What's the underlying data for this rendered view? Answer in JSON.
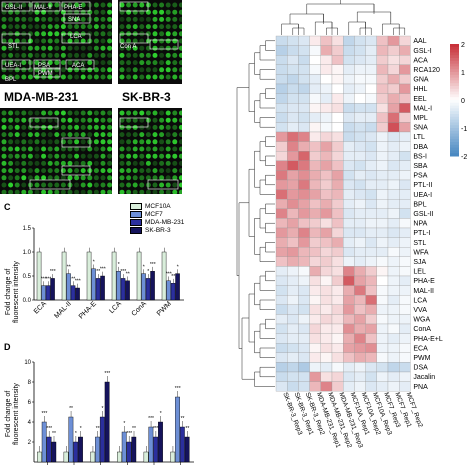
{
  "arrays": {
    "top_left_labels": [
      "GSL-II",
      "MAL-II",
      "PHA-E",
      "STL",
      "UEA-I",
      "BPL",
      "PSA",
      "PWM",
      "LCA",
      "ACA",
      "SNA",
      "Con A"
    ],
    "captions": [
      "MDA-MB-231",
      "SK-BR-3"
    ],
    "colors": {
      "background": "#0a0a0a",
      "spot": "#2fd12f"
    }
  },
  "panel_c": {
    "letter": "C",
    "ylabel_line1": "Fold change of",
    "ylabel_line2": "fluorescent intensity",
    "categories": [
      "ECA",
      "MAL-II",
      "PHA-E",
      "LCA",
      "ConA",
      "PWM"
    ],
    "legend": [
      "MCF10A",
      "MCF7",
      "MDA-MB-231",
      "SK-BR-3"
    ],
    "colors": [
      "#d9eedb",
      "#6d8fd6",
      "#2b2f9e",
      "#15135c"
    ]
  },
  "panel_d": {
    "letter": "D",
    "ylabel_line1": "Fold change of",
    "ylabel_line2": "fluorescent intensity"
  },
  "chart_data": [
    {
      "type": "bar",
      "title": "",
      "xlabel": "",
      "ylabel": "Fold change of fluorescent intensity",
      "ylim": [
        0,
        1.5
      ],
      "yticks": [
        0.0,
        0.5,
        1.0,
        1.5
      ],
      "categories": [
        "ECA",
        "MAL-II",
        "PHA-E",
        "LCA",
        "ConA",
        "PWM"
      ],
      "series": [
        {
          "name": "MCF10A",
          "values": [
            1.0,
            1.0,
            1.0,
            1.0,
            1.0,
            1.0
          ]
        },
        {
          "name": "MCF7",
          "values": [
            0.3,
            0.55,
            0.65,
            0.6,
            0.55,
            0.4
          ]
        },
        {
          "name": "MDA-MB-231",
          "values": [
            0.3,
            0.3,
            0.45,
            0.45,
            0.45,
            0.35
          ]
        },
        {
          "name": "SK-BR-3",
          "values": [
            0.45,
            0.25,
            0.5,
            0.4,
            0.6,
            0.55
          ]
        }
      ],
      "significance": [
        [
          "",
          "***",
          "***",
          "***"
        ],
        [
          "",
          "**",
          "**",
          "***"
        ],
        [
          "",
          "*",
          "**",
          "***"
        ],
        [
          "",
          "*",
          "***",
          "**"
        ],
        [
          "",
          "*",
          "*",
          "***"
        ],
        [
          "",
          "***",
          "**",
          "*"
        ]
      ]
    },
    {
      "type": "bar",
      "title": "",
      "xlabel": "",
      "ylabel": "Fold change of fluorescent intensity",
      "ylim": [
        0,
        10
      ],
      "yticks": [
        2,
        4,
        6,
        8,
        10
      ],
      "groups": 6,
      "series": [
        {
          "name": "MCF10A",
          "values": [
            1.0,
            1.0,
            1.0,
            1.0,
            1.0,
            1.0
          ]
        },
        {
          "name": "MCF7",
          "values": [
            4.0,
            4.5,
            2.5,
            3.0,
            3.5,
            6.5
          ]
        },
        {
          "name": "MDA-MB-231",
          "values": [
            2.5,
            2.0,
            4.5,
            2.0,
            2.5,
            3.5
          ]
        },
        {
          "name": "SK-BR-3",
          "values": [
            2.0,
            2.5,
            8.0,
            2.5,
            4.0,
            2.5
          ]
        }
      ],
      "significance": [
        [
          "",
          "***",
          "***",
          "**"
        ],
        [
          "",
          "**",
          "*",
          "*"
        ],
        [
          "",
          "**",
          "*",
          "***"
        ],
        [
          "",
          "*",
          "***",
          "**"
        ],
        [
          "",
          "***",
          "***",
          "*"
        ],
        [
          "",
          "***",
          "**",
          "**"
        ]
      ]
    },
    {
      "type": "heatmap",
      "title": "",
      "rows": [
        "AAL",
        "GSL-I",
        "ACA",
        "RCA120",
        "GNA",
        "HHL",
        "EEL",
        "MAL-I",
        "MPL",
        "SNA",
        "LTL",
        "DBA",
        "BS-I",
        "SBA",
        "PSA",
        "PTL-II",
        "UEA-I",
        "BPL",
        "GSL-II",
        "NPA",
        "PTL-I",
        "STL",
        "WFA",
        "SJA",
        "LEL",
        "PHA-E",
        "MAL-II",
        "LCA",
        "VVA",
        "WGA",
        "ConA",
        "PHA-E+L",
        "ECA",
        "PWM",
        "DSA",
        "Jacalin",
        "PNA"
      ],
      "columns": [
        "SK-BR-3_Rep3",
        "SK-BR-3_Rep1",
        "SK-BR-3_Rep2",
        "MDA-MB-231_Rep1",
        "MDA-MB-231_Rep2",
        "MDA-MB-231_Rep3",
        "MCF10A_Rep1",
        "MCF10A_Rep2",
        "MCF10A_Rep3",
        "MCF7_Rep3",
        "MCF7_Rep1",
        "MCF7_Rep2"
      ],
      "color_scale": {
        "ticks": [
          "2",
          "1",
          "0",
          "-1",
          "-2"
        ],
        "high": "#c8313a",
        "mid": "#ffffff",
        "low": "#4a89c2"
      },
      "values": [
        [
          -0.6,
          -0.5,
          -0.4,
          0.2,
          0.6,
          0.3,
          -0.7,
          -0.5,
          -0.4,
          0.6,
          1.0,
          0.4
        ],
        [
          -0.8,
          -0.6,
          -0.5,
          -0.1,
          0.8,
          0.5,
          -0.6,
          -0.5,
          -0.3,
          0.7,
          0.5,
          0.8
        ],
        [
          -0.6,
          -0.4,
          -0.6,
          0.0,
          0.2,
          0.6,
          -0.5,
          -0.4,
          -0.3,
          0.5,
          0.3,
          0.4
        ],
        [
          -0.6,
          -0.5,
          -0.5,
          -0.1,
          0.2,
          0.1,
          -0.3,
          -0.2,
          -0.2,
          0.7,
          0.4,
          1.0
        ],
        [
          -0.6,
          -0.7,
          -0.5,
          -0.3,
          0.0,
          0.1,
          -0.2,
          -0.1,
          -0.1,
          0.5,
          0.8,
          0.5
        ],
        [
          -0.8,
          -0.6,
          -0.7,
          -0.3,
          -0.2,
          0.0,
          -0.3,
          -0.2,
          0.0,
          0.6,
          0.5,
          1.0
        ],
        [
          -0.7,
          -0.5,
          -0.5,
          -0.1,
          -0.3,
          0.2,
          -0.2,
          0.0,
          -0.1,
          0.5,
          0.8,
          0.6
        ],
        [
          -0.5,
          -0.4,
          -0.4,
          0.1,
          0.2,
          0.3,
          -0.6,
          -0.5,
          -0.5,
          0.3,
          0.9,
          1.6
        ],
        [
          -0.6,
          -0.4,
          -0.5,
          -0.3,
          -0.2,
          0.0,
          -0.4,
          -0.3,
          -0.3,
          0.6,
          1.4,
          0.5
        ],
        [
          -0.5,
          -0.3,
          -0.4,
          0.1,
          -0.1,
          0.0,
          -0.6,
          -0.5,
          -0.6,
          0.5,
          1.7,
          0.9
        ],
        [
          1.0,
          1.4,
          1.2,
          0.2,
          0.4,
          0.3,
          -0.6,
          -0.5,
          -0.4,
          -0.2,
          -0.4,
          -0.3
        ],
        [
          0.5,
          1.2,
          0.8,
          0.6,
          0.9,
          0.5,
          -0.3,
          -0.4,
          -0.5,
          -0.2,
          -0.3,
          -0.2
        ],
        [
          0.4,
          1.0,
          1.5,
          0.5,
          0.7,
          0.4,
          -0.3,
          -0.3,
          -0.4,
          -0.2,
          -0.3,
          -0.5
        ],
        [
          1.2,
          1.6,
          1.3,
          0.7,
          0.9,
          0.6,
          -0.4,
          -0.5,
          -0.3,
          -0.2,
          -0.4,
          -0.3
        ],
        [
          1.3,
          0.9,
          1.1,
          0.8,
          0.6,
          0.9,
          -0.5,
          -0.3,
          -0.4,
          -0.3,
          -0.3,
          -0.2
        ],
        [
          1.0,
          0.9,
          1.3,
          0.7,
          0.5,
          0.8,
          -0.4,
          -0.5,
          -0.3,
          -0.3,
          -0.2,
          -0.4
        ],
        [
          1.4,
          1.0,
          1.1,
          0.9,
          0.6,
          0.7,
          -0.3,
          -0.4,
          -0.5,
          -0.2,
          -0.3,
          -0.3
        ],
        [
          0.8,
          1.1,
          0.9,
          0.6,
          0.8,
          0.5,
          -0.3,
          -0.2,
          -0.4,
          -0.2,
          -0.3,
          -0.3
        ],
        [
          1.2,
          0.7,
          1.0,
          0.8,
          1.0,
          0.6,
          -0.4,
          -0.3,
          -0.3,
          -0.3,
          -0.2,
          -0.5
        ],
        [
          0.7,
          0.9,
          0.6,
          0.5,
          0.3,
          0.6,
          -0.3,
          -0.3,
          -0.2,
          -0.2,
          -0.3,
          -0.1
        ],
        [
          1.0,
          0.8,
          1.2,
          0.7,
          0.9,
          0.4,
          -0.4,
          -0.4,
          -0.3,
          -0.3,
          -0.4,
          -0.3
        ],
        [
          0.8,
          0.6,
          1.0,
          0.5,
          0.6,
          0.8,
          -0.3,
          -0.2,
          -0.4,
          -0.2,
          -0.3,
          -0.2
        ],
        [
          0.9,
          1.0,
          0.7,
          0.6,
          0.4,
          0.5,
          -0.4,
          -0.3,
          -0.3,
          -0.3,
          -0.1,
          -0.2
        ],
        [
          0.6,
          0.8,
          0.7,
          0.4,
          0.5,
          0.3,
          -0.2,
          -0.3,
          -0.2,
          -0.1,
          -0.2,
          -0.1
        ],
        [
          -0.3,
          -0.2,
          -0.1,
          0.8,
          0.4,
          0.3,
          1.2,
          0.8,
          0.5,
          0.1,
          -0.2,
          -0.1
        ],
        [
          -0.4,
          -0.3,
          -0.2,
          0.3,
          0.1,
          0.5,
          1.6,
          0.9,
          0.7,
          0.0,
          -0.2,
          -0.3
        ],
        [
          -0.5,
          -0.3,
          -0.4,
          0.2,
          0.3,
          0.2,
          0.8,
          1.3,
          0.6,
          -0.1,
          -0.2,
          -0.2
        ],
        [
          -0.4,
          -0.2,
          -0.4,
          0.1,
          0.3,
          0.2,
          0.9,
          0.7,
          1.4,
          -0.1,
          -0.3,
          -0.1
        ],
        [
          -0.6,
          -0.4,
          -0.5,
          0.3,
          0.2,
          0.4,
          1.0,
          0.6,
          0.8,
          -0.2,
          -0.2,
          -0.1
        ],
        [
          -0.3,
          -0.4,
          -0.2,
          0.2,
          0.4,
          0.3,
          0.7,
          0.9,
          0.5,
          -0.1,
          -0.2,
          -0.2
        ],
        [
          -0.5,
          -0.3,
          -0.4,
          0.4,
          0.2,
          0.2,
          1.1,
          0.8,
          0.9,
          -0.2,
          -0.1,
          -0.3
        ],
        [
          -0.4,
          -0.3,
          -0.3,
          0.3,
          0.2,
          0.1,
          0.8,
          1.2,
          0.6,
          -0.2,
          -0.3,
          -0.2
        ],
        [
          -0.6,
          -0.5,
          -0.4,
          0.1,
          0.3,
          0.2,
          0.9,
          1.0,
          1.1,
          -0.2,
          -0.2,
          -0.1
        ],
        [
          -0.4,
          -0.3,
          -0.4,
          0.2,
          0.1,
          0.3,
          0.6,
          0.8,
          0.7,
          -0.1,
          -0.2,
          -0.1
        ],
        [
          -0.8,
          -0.7,
          -0.9,
          -0.2,
          -0.3,
          -0.1,
          -0.3,
          -0.2,
          -0.4,
          -0.5,
          -0.7,
          -0.6
        ],
        [
          -0.6,
          -0.5,
          -0.5,
          1.0,
          0.3,
          0.4,
          -0.4,
          -0.3,
          -0.5,
          -0.2,
          -0.3,
          -0.2
        ],
        [
          -0.4,
          -0.6,
          -0.5,
          0.7,
          1.2,
          0.5,
          -0.3,
          -0.2,
          -0.4,
          -0.3,
          -0.2,
          -0.3
        ]
      ]
    }
  ]
}
